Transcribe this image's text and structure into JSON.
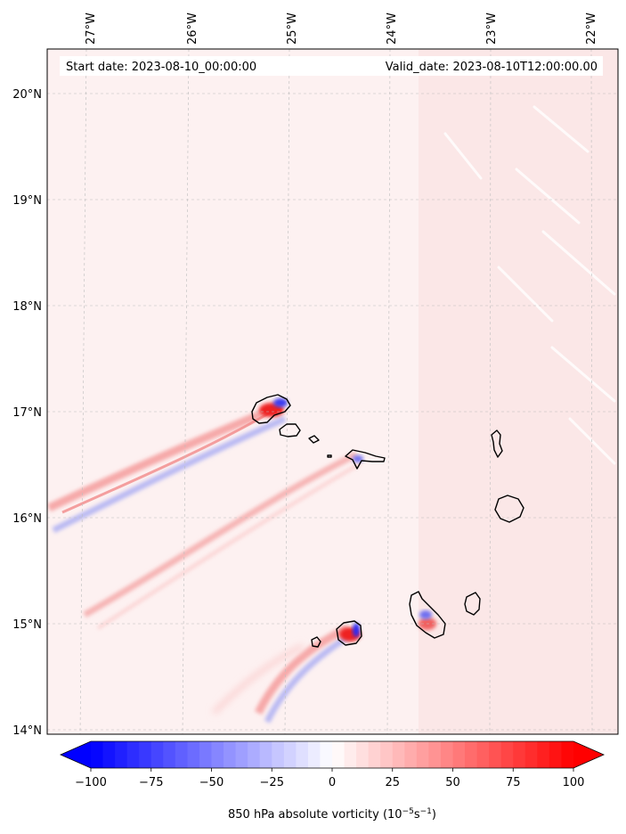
{
  "header": {
    "start_date": "Start date: 2023-08-10_00:00:00",
    "valid_date": "Valid_date: 2023-08-10T12:00:00.00"
  },
  "map": {
    "lon_labels": [
      "27°W",
      "26°W",
      "25°W",
      "24°W",
      "23°W",
      "22°W"
    ],
    "lat_labels": [
      "20°N",
      "19°N",
      "18°N",
      "17°N",
      "16°N",
      "15°N",
      "14°N"
    ],
    "background_color": "#fdf1f1",
    "land_outline_color": "#000000"
  },
  "colorbar": {
    "ticks": [
      "−100",
      "−75",
      "−50",
      "−25",
      "0",
      "25",
      "50",
      "75",
      "100"
    ],
    "range": [
      -100,
      100
    ],
    "cmap": "bwr",
    "label": "850 hPa absolute vorticity (10",
    "label_exp_a": "−5",
    "label_mid": "s",
    "label_exp_b": "−1",
    "label_end": ")"
  }
}
